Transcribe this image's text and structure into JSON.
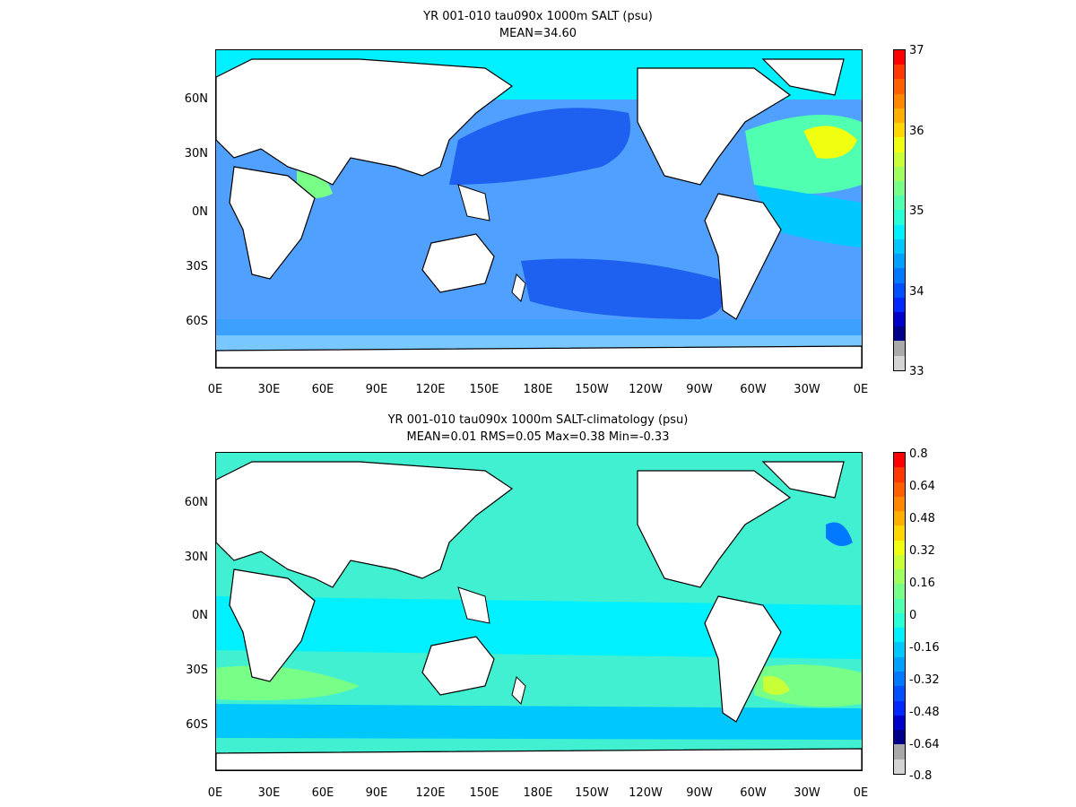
{
  "colors": {
    "land": "#ffffff",
    "coast": "#000000",
    "colorbar": [
      "#00008b",
      "#0000cd",
      "#0028ff",
      "#0050ff",
      "#0078ff",
      "#00a0ff",
      "#00c8ff",
      "#00f0ff",
      "#28ffd7",
      "#50ffaf",
      "#78ff87",
      "#a0ff5f",
      "#c8ff37",
      "#f0ff0f",
      "#ffd700",
      "#ffaf00",
      "#ff8700",
      "#ff5f00",
      "#ff3700",
      "#ff0000"
    ],
    "colorbar_ends": [
      "#a9a9a9",
      "#d3d3d3"
    ]
  },
  "panels": [
    {
      "title_line1": "YR 001-010 tau090x 1000m SALT (psu)",
      "title_line2": "MEAN=34.60",
      "colorbar_labels": [
        "37",
        "36",
        "35",
        "34",
        "33"
      ],
      "ocean_base": "#50a0ff",
      "features": [
        {
          "name": "north-pacific-fresh",
          "color": "#1e60f0"
        },
        {
          "name": "south-pacific-fresh",
          "color": "#1e60f0"
        },
        {
          "name": "north-atlantic-salty",
          "color": "#f0ff0f"
        },
        {
          "name": "arctic",
          "color": "#00f0ff"
        },
        {
          "name": "southern-ocean",
          "color": "#3ca0ff"
        }
      ]
    },
    {
      "title_line1": "YR 001-010 tau090x 1000m SALT-climatology (psu)",
      "title_line2": "MEAN=0.01   RMS=0.05   Max=0.38   Min=-0.33",
      "colorbar_labels": [
        "0.8",
        "0.64",
        "0.48",
        "0.32",
        "0.16",
        "0",
        "-0.16",
        "-0.32",
        "-0.48",
        "-0.64",
        "-0.8"
      ],
      "ocean_base": "#40f0d0",
      "features": [
        {
          "name": "pacific-anomaly",
          "color": "#28ffd7"
        },
        {
          "name": "south-atlantic-positive",
          "color": "#c8ff37"
        },
        {
          "name": "north-atlantic-negative",
          "color": "#0078ff"
        },
        {
          "name": "southern-ocean-mixed",
          "color": "#00c8ff"
        }
      ]
    }
  ],
  "y_ticks": [
    "60N",
    "30N",
    "0N",
    "30S",
    "60S"
  ],
  "x_ticks": [
    "0E",
    "30E",
    "60E",
    "90E",
    "120E",
    "150E",
    "180E",
    "150W",
    "120W",
    "90W",
    "60W",
    "30W",
    "0E"
  ]
}
